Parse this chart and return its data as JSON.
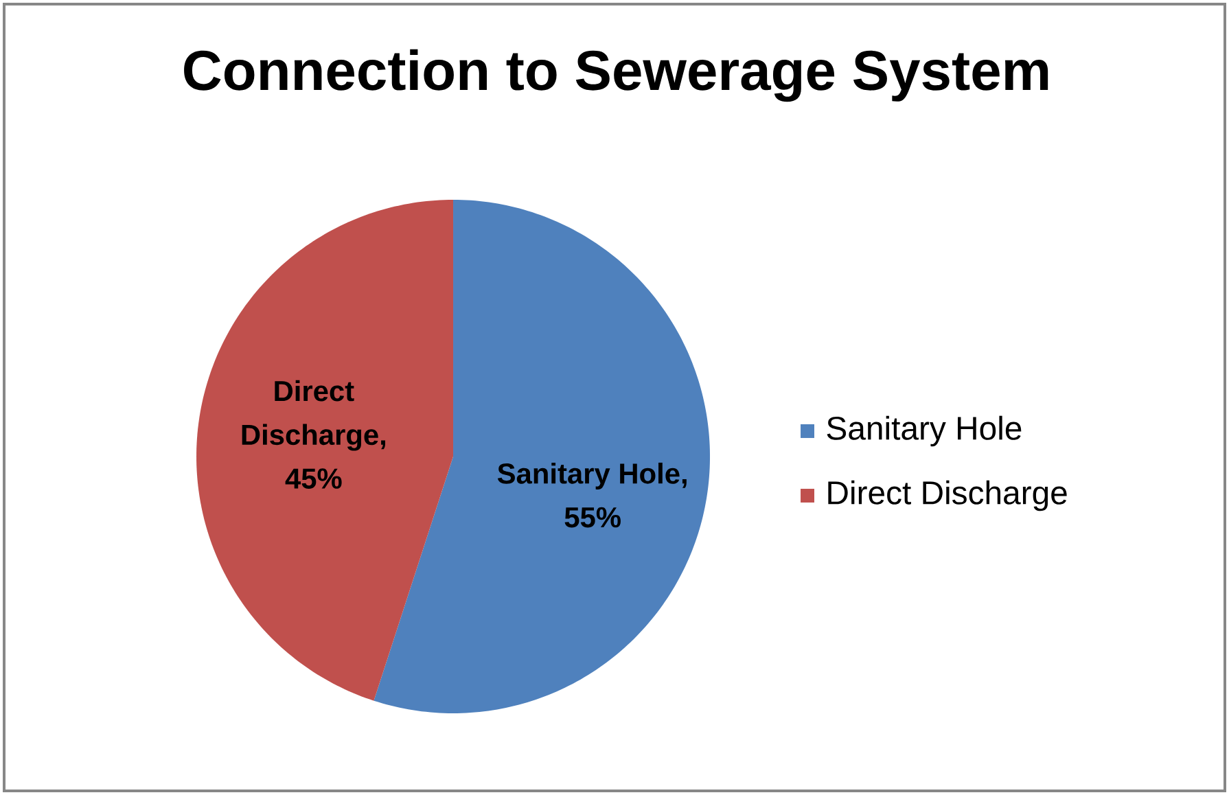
{
  "chart_data": {
    "type": "pie",
    "title": "Connection to Sewerage System",
    "categories": [
      "Sanitary Hole",
      "Direct Discharge"
    ],
    "values": [
      55,
      45
    ],
    "colors": [
      "#4f81bd",
      "#c0504d"
    ],
    "value_labels": [
      "Sanitary Hole, 55%",
      "Direct Discharge, 45%"
    ],
    "legend": "right"
  }
}
